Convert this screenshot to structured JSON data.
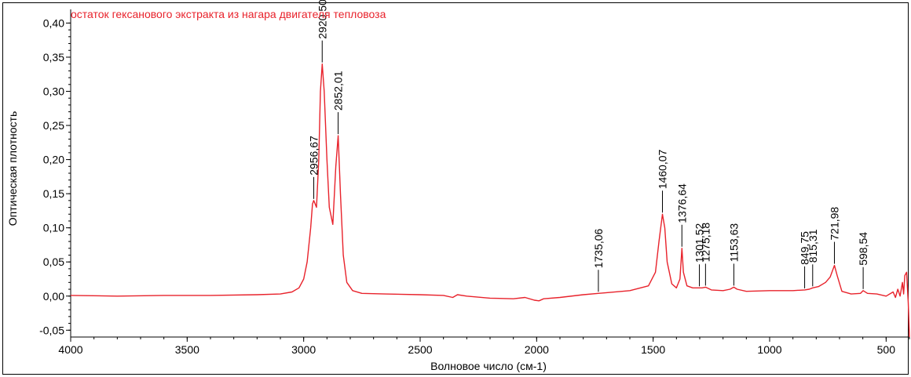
{
  "chart_data": {
    "type": "line",
    "title": "остаток гексанового экстракта из нагара двигателя тепловоза",
    "xlabel": "Волновое число (см-1)",
    "ylabel": "Оптическая плотность",
    "xlim": [
      4000,
      400
    ],
    "ylim": [
      -0.06,
      0.42
    ],
    "x_ticks": [
      4000,
      3500,
      3000,
      2500,
      2000,
      1500,
      1000,
      500
    ],
    "x_tick_labels": [
      "4000",
      "3500",
      "3000",
      "2500",
      "2000",
      "1500",
      "1000",
      "500"
    ],
    "y_ticks": [
      -0.05,
      0.0,
      0.05,
      0.1,
      0.15,
      0.2,
      0.25,
      0.3,
      0.35,
      0.4
    ],
    "y_tick_labels": [
      "-0,05",
      "0,00",
      "0,05",
      "0,10",
      "0,15",
      "0,20",
      "0,25",
      "0,30",
      "0,35",
      "0,40"
    ],
    "series": [
      {
        "name": "остаток гексанового экстракта из нагара двигателя тепловоза",
        "color": "#e8222b",
        "points": [
          [
            4000,
            0.001
          ],
          [
            3800,
            0.0
          ],
          [
            3600,
            0.001
          ],
          [
            3400,
            0.001
          ],
          [
            3200,
            0.002
          ],
          [
            3100,
            0.003
          ],
          [
            3050,
            0.006
          ],
          [
            3020,
            0.012
          ],
          [
            3000,
            0.025
          ],
          [
            2985,
            0.05
          ],
          [
            2970,
            0.1
          ],
          [
            2962,
            0.135
          ],
          [
            2956.67,
            0.14
          ],
          [
            2945,
            0.13
          ],
          [
            2935,
            0.2
          ],
          [
            2928,
            0.3
          ],
          [
            2920.5,
            0.34
          ],
          [
            2912,
            0.3
          ],
          [
            2900,
            0.2
          ],
          [
            2890,
            0.13
          ],
          [
            2875,
            0.105
          ],
          [
            2862,
            0.19
          ],
          [
            2852.01,
            0.235
          ],
          [
            2842,
            0.15
          ],
          [
            2830,
            0.06
          ],
          [
            2815,
            0.02
          ],
          [
            2790,
            0.008
          ],
          [
            2750,
            0.004
          ],
          [
            2650,
            0.003
          ],
          [
            2500,
            0.002
          ],
          [
            2400,
            0.001
          ],
          [
            2360,
            -0.002
          ],
          [
            2340,
            0.002
          ],
          [
            2300,
            0.0
          ],
          [
            2200,
            -0.003
          ],
          [
            2100,
            -0.004
          ],
          [
            2050,
            -0.002
          ],
          [
            2010,
            -0.006
          ],
          [
            1990,
            -0.007
          ],
          [
            1970,
            -0.004
          ],
          [
            1900,
            -0.002
          ],
          [
            1800,
            0.002
          ],
          [
            1735.06,
            0.004
          ],
          [
            1700,
            0.005
          ],
          [
            1600,
            0.008
          ],
          [
            1520,
            0.015
          ],
          [
            1490,
            0.035
          ],
          [
            1475,
            0.08
          ],
          [
            1460.07,
            0.12
          ],
          [
            1450,
            0.1
          ],
          [
            1440,
            0.05
          ],
          [
            1420,
            0.018
          ],
          [
            1400,
            0.012
          ],
          [
            1385,
            0.025
          ],
          [
            1376.64,
            0.07
          ],
          [
            1370,
            0.035
          ],
          [
            1355,
            0.015
          ],
          [
            1330,
            0.012
          ],
          [
            1301.52,
            0.012
          ],
          [
            1290,
            0.012
          ],
          [
            1275.18,
            0.013
          ],
          [
            1250,
            0.009
          ],
          [
            1200,
            0.008
          ],
          [
            1170,
            0.01
          ],
          [
            1153.63,
            0.013
          ],
          [
            1140,
            0.01
          ],
          [
            1100,
            0.007
          ],
          [
            1000,
            0.008
          ],
          [
            900,
            0.008
          ],
          [
            849.75,
            0.009
          ],
          [
            830,
            0.01
          ],
          [
            815.31,
            0.012
          ],
          [
            790,
            0.014
          ],
          [
            760,
            0.02
          ],
          [
            740,
            0.028
          ],
          [
            721.98,
            0.045
          ],
          [
            710,
            0.03
          ],
          [
            690,
            0.007
          ],
          [
            650,
            0.003
          ],
          [
            610,
            0.004
          ],
          [
            598.54,
            0.008
          ],
          [
            580,
            0.004
          ],
          [
            540,
            0.003
          ],
          [
            500,
            0.0
          ],
          [
            470,
            0.006
          ],
          [
            460,
            -0.002
          ],
          [
            450,
            0.01
          ],
          [
            440,
            0.0
          ],
          [
            430,
            0.02
          ],
          [
            425,
            0.003
          ],
          [
            420,
            0.03
          ],
          [
            412,
            0.035
          ],
          [
            405,
            -0.01
          ],
          [
            400,
            -0.06
          ]
        ]
      }
    ],
    "annotations": [
      {
        "label": "2956,67",
        "x": 2956.67,
        "y": 0.14
      },
      {
        "label": "2920,50",
        "x": 2920.5,
        "y": 0.34
      },
      {
        "label": "2852,01",
        "x": 2852.01,
        "y": 0.235
      },
      {
        "label": "1735,06",
        "x": 1735.06,
        "y": 0.004
      },
      {
        "label": "1460,07",
        "x": 1460.07,
        "y": 0.12
      },
      {
        "label": "1376,64",
        "x": 1376.64,
        "y": 0.07
      },
      {
        "label": "1301,52",
        "x": 1301.52,
        "y": 0.012
      },
      {
        "label": "1275,18",
        "x": 1275.18,
        "y": 0.013
      },
      {
        "label": "1153,63",
        "x": 1153.63,
        "y": 0.013
      },
      {
        "label": "849,75",
        "x": 849.75,
        "y": 0.009
      },
      {
        "label": "815,31",
        "x": 815.31,
        "y": 0.012
      },
      {
        "label": "721,98",
        "x": 721.98,
        "y": 0.045
      },
      {
        "label": "598,54",
        "x": 598.54,
        "y": 0.008
      }
    ]
  }
}
